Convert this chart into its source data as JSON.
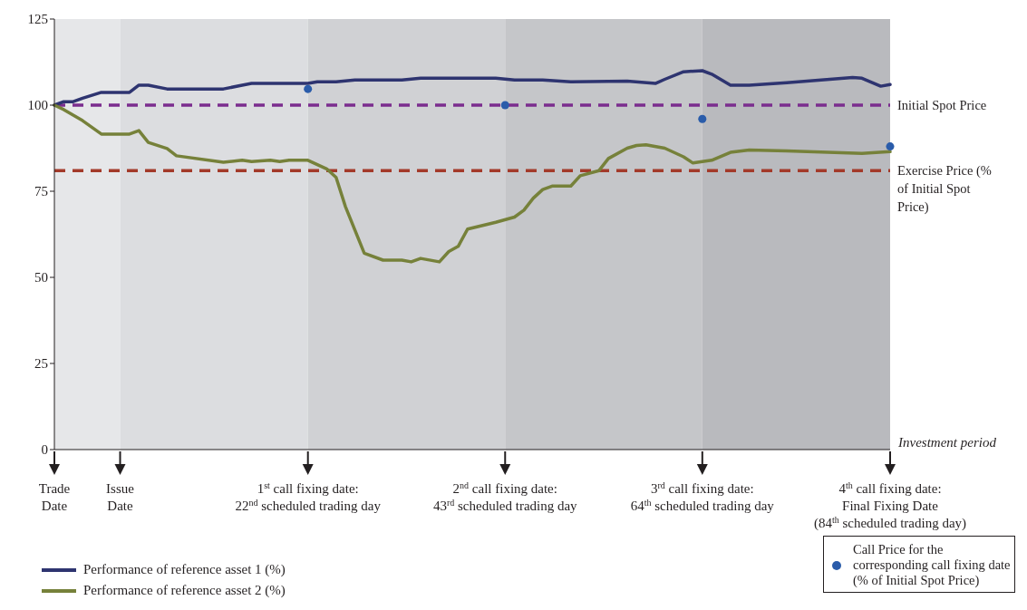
{
  "chart_data": {
    "type": "line",
    "categories": [
      "Trade\nDate",
      null,
      null,
      null,
      null,
      null,
      null,
      "Issue\nDate",
      null,
      null,
      null,
      null,
      null,
      null,
      null,
      null,
      null,
      null,
      null,
      null,
      null,
      null,
      null,
      null,
      null,
      null,
      null,
      "1$^{st}$ call fixing date:\n22$^{nd}$ scheduled trading day",
      null,
      null,
      null,
      null,
      null,
      null,
      null,
      null,
      null,
      null,
      null,
      null,
      null,
      null,
      null,
      null,
      null,
      null,
      null,
      null,
      "2$^{nd}$ call fixing date:\n43$^{rd}$ scheduled trading day",
      null,
      null,
      null,
      null,
      null,
      null,
      null,
      null,
      null,
      null,
      null,
      null,
      null,
      null,
      null,
      null,
      null,
      null,
      null,
      null,
      "3$^{rd}$ call fixing date:\n64$^{th}$ scheduled trading day",
      null,
      null,
      null,
      null,
      null,
      null,
      null,
      null,
      null,
      null,
      null,
      null,
      null,
      null,
      null,
      null,
      null,
      null,
      null,
      "4$^{th}$ call fixing date:\nFinal Fixing Date\n(84$^{th}$ scheduled trading day)"
    ],
    "ylim": [
      0,
      125
    ],
    "yticks": [
      0,
      25,
      50,
      75,
      100,
      125
    ],
    "legend": "bottom",
    "series": [
      {
        "name": "Performance of reference asset 1 (%)",
        "color": "#2e3470",
        "values": [
          100,
          101,
          101,
          102,
          null,
          103.7,
          null,
          null,
          103.7,
          105.8,
          105.8,
          null,
          104.7,
          null,
          null,
          null,
          null,
          null,
          104.7,
          null,
          105.8,
          106.3,
          null,
          null,
          null,
          null,
          null,
          106.3,
          106.8,
          null,
          106.8,
          null,
          107.3,
          null,
          null,
          null,
          null,
          107.3,
          null,
          107.8,
          null,
          null,
          null,
          null,
          null,
          null,
          null,
          107.8,
          null,
          107.3,
          null,
          null,
          107.3,
          null,
          null,
          106.8,
          null,
          null,
          null,
          null,
          null,
          107,
          null,
          null,
          106.3,
          107.5,
          null,
          109.7,
          null,
          110,
          109,
          null,
          105.8,
          null,
          105.8,
          null,
          null,
          null,
          106.5,
          null,
          null,
          null,
          null,
          null,
          null,
          108,
          107.8,
          null,
          105.5,
          106
        ]
      },
      {
        "name": "Performance of reference asset 2 (%)",
        "color": "#76813a",
        "values": [
          100,
          98.7,
          null,
          95.5,
          null,
          91.6,
          null,
          null,
          91.6,
          92.6,
          89.2,
          null,
          87.4,
          85.3,
          null,
          null,
          null,
          null,
          83.4,
          null,
          84,
          83.6,
          null,
          84,
          83.6,
          84,
          null,
          84,
          null,
          81.5,
          79,
          70.5,
          null,
          57,
          null,
          55,
          null,
          55,
          54.5,
          55.5,
          null,
          54.5,
          57.5,
          59,
          64,
          null,
          null,
          66,
          null,
          67.5,
          69.5,
          73,
          75.5,
          76.5,
          null,
          76.5,
          79.5,
          null,
          81,
          84.5,
          null,
          87.5,
          88.3,
          88.5,
          null,
          87.5,
          null,
          85,
          83.2,
          null,
          84,
          null,
          86.3,
          null,
          87,
          null,
          null,
          null,
          86.7,
          null,
          null,
          null,
          null,
          null,
          null,
          null,
          86,
          null,
          null,
          86.5
        ]
      },
      {
        "name": "Call Price for the corresponding call fixing date (% of Initial Spot Price)",
        "type": "scatter",
        "marker": "circle",
        "color": "#2a5caa",
        "values": [
          null,
          null,
          null,
          null,
          null,
          null,
          null,
          null,
          null,
          null,
          null,
          null,
          null,
          null,
          null,
          null,
          null,
          null,
          null,
          null,
          null,
          null,
          null,
          null,
          null,
          null,
          null,
          104.7,
          null,
          null,
          null,
          null,
          null,
          null,
          null,
          null,
          null,
          null,
          null,
          null,
          null,
          null,
          null,
          null,
          null,
          null,
          null,
          null,
          100,
          null,
          null,
          null,
          null,
          null,
          null,
          null,
          null,
          null,
          null,
          null,
          null,
          null,
          null,
          null,
          null,
          null,
          null,
          null,
          null,
          96,
          null,
          null,
          null,
          null,
          null,
          null,
          null,
          null,
          null,
          null,
          null,
          null,
          null,
          null,
          null,
          null,
          null,
          null,
          null,
          88
        ]
      }
    ],
    "ref_lines": [
      {
        "axis": "y",
        "value": 100,
        "label": "Initial Spot Price",
        "color": "#7b2d8e",
        "line_style": "dashed"
      },
      {
        "axis": "y",
        "value": 81,
        "label": "Exercise Price (% of Initial Spot Price)",
        "color": "#a33a2a",
        "line_style": "dashed"
      }
    ],
    "bands": [
      {
        "axis": "x",
        "from": "Trade\nDate",
        "to": "Issue\nDate",
        "color": "#e6e7e9"
      },
      {
        "axis": "x",
        "from": "Issue\nDate",
        "to": "1$^{st}$ call fixing date:\n22$^{nd}$ scheduled trading day",
        "color": "#dcdde0"
      },
      {
        "axis": "x",
        "from": "1$^{st}$ call fixing date:\n22$^{nd}$ scheduled trading day",
        "to": "2$^{nd}$ call fixing date:\n43$^{rd}$ scheduled trading day",
        "color": "#d0d1d4"
      },
      {
        "axis": "x",
        "from": "2$^{nd}$ call fixing date:\n43$^{rd}$ scheduled trading day",
        "to": "3$^{rd}$ call fixing date:\n64$^{th}$ scheduled trading day",
        "color": "#c5c6c9"
      },
      {
        "axis": "x",
        "from": "3$^{rd}$ call fixing date:\n64$^{th}$ scheduled trading day",
        "to": "4$^{th}$ call fixing date:\nFinal Fixing Date\n(84$^{th}$ scheduled trading day)",
        "color": "#b9babe"
      }
    ],
    "annotations": [
      "Investment period"
    ]
  }
}
